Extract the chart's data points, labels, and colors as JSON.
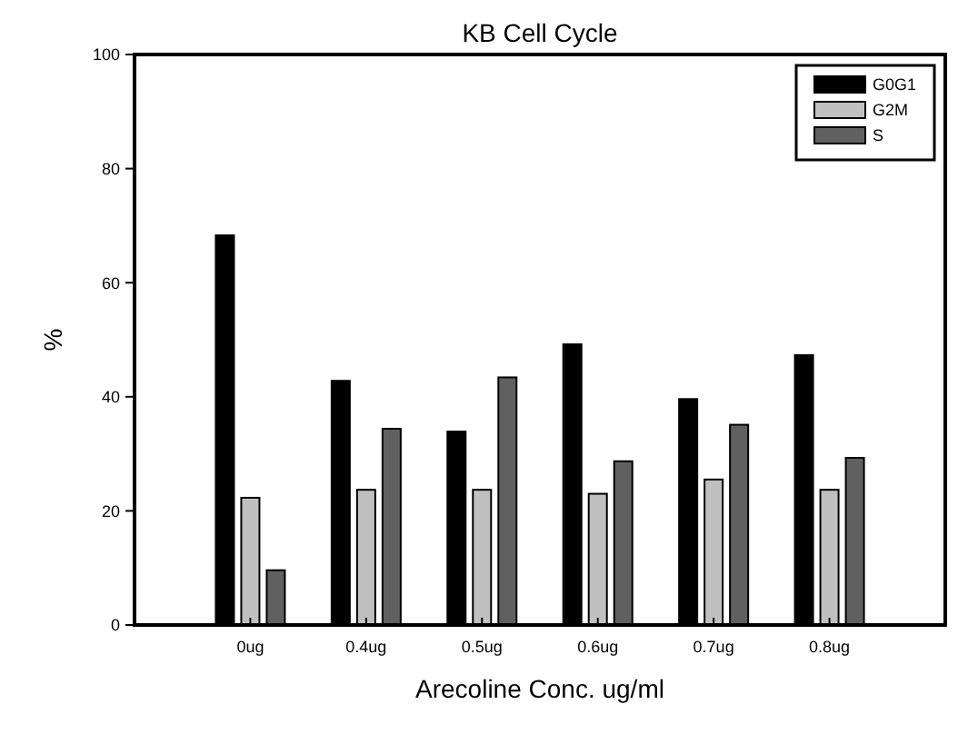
{
  "chart_data": {
    "type": "bar",
    "title": "KB Cell Cycle",
    "xlabel": "Arecoline Conc. ug/ml",
    "ylabel": "%",
    "categories": [
      "0ug",
      "0.4ug",
      "0.5ug",
      "0.6ug",
      "0.7ug",
      "0.8ug"
    ],
    "series": [
      {
        "name": "G0G1",
        "color": "#000000",
        "values": [
          68.3,
          42.8,
          33.9,
          49.2,
          39.6,
          47.3
        ]
      },
      {
        "name": "G2M",
        "color": "#c0c0c0",
        "values": [
          22.3,
          23.7,
          23.7,
          23.0,
          25.5,
          23.7
        ]
      },
      {
        "name": "S",
        "color": "#606060",
        "values": [
          9.6,
          34.4,
          43.4,
          28.7,
          35.1,
          29.3
        ]
      }
    ],
    "ylim": [
      0,
      100
    ],
    "yticks": [
      0,
      20,
      40,
      60,
      80,
      100
    ],
    "grid": false,
    "legend": "top right"
  }
}
